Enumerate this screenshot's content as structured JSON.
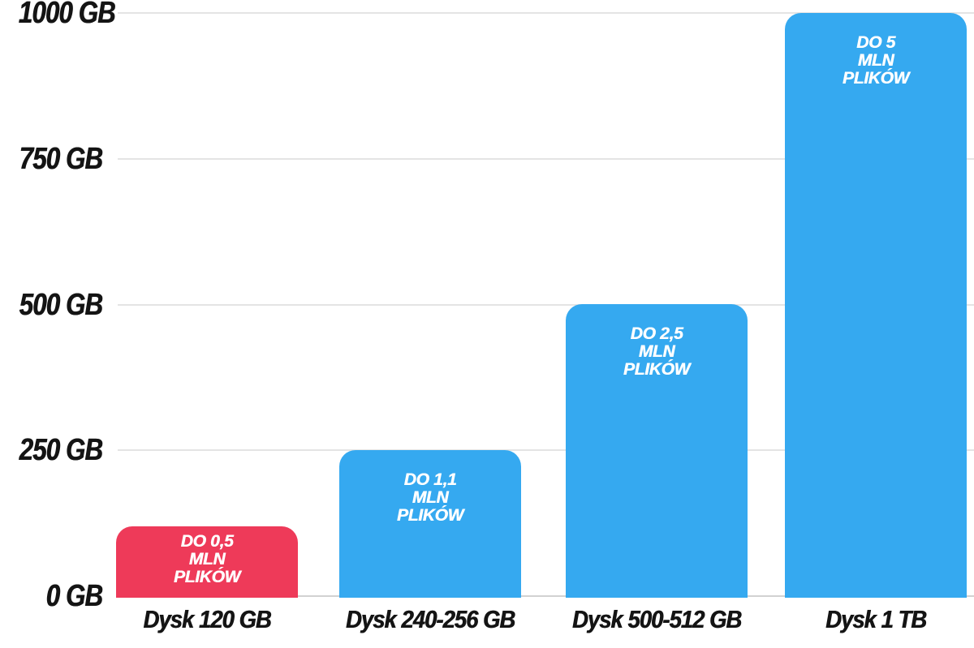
{
  "chart_data": {
    "type": "bar",
    "title": "",
    "xlabel": "",
    "ylabel": "",
    "value_unit": "GB",
    "ylim": [
      0,
      1000
    ],
    "grid": true,
    "legend": false,
    "categories": [
      "Dysk 120 GB",
      "Dysk 240-256 GB",
      "Dysk 500-512 GB",
      "Dysk 1 TB"
    ],
    "values": [
      120,
      250,
      500,
      1000
    ],
    "yticks": [
      {
        "value": 1000,
        "label": "1000 GB"
      },
      {
        "value": 750,
        "label": "750 GB"
      },
      {
        "value": 500,
        "label": "500 GB"
      },
      {
        "value": 250,
        "label": "250 GB"
      },
      {
        "value": 0,
        "label": "0 GB"
      }
    ],
    "bars": [
      {
        "category": "Dysk 120 GB",
        "value_gb": 120,
        "color": "#ee3a59",
        "annotation_lines": [
          "DO 0,5",
          "MLN",
          "PLIKÓW"
        ]
      },
      {
        "category": "Dysk 240-256 GB",
        "value_gb": 250,
        "color": "#35a9f0",
        "annotation_lines": [
          "DO 1,1",
          "MLN",
          "PLIKÓW"
        ]
      },
      {
        "category": "Dysk 500-512 GB",
        "value_gb": 500,
        "color": "#35a9f0",
        "annotation_lines": [
          "DO 2,5",
          "MLN",
          "PLIKÓW"
        ]
      },
      {
        "category": "Dysk 1 TB",
        "value_gb": 1000,
        "color": "#35a9f0",
        "annotation_lines": [
          "DO 5",
          "MLN",
          "PLIKÓW"
        ]
      }
    ]
  },
  "colors": {
    "background": "#ffffff",
    "gridline": "#e4e4e4",
    "baseline": "#d2d2d2",
    "axis_text": "#141414",
    "bar_text": "#ffffff",
    "red": "#ee3a59",
    "blue": "#35a9f0"
  }
}
